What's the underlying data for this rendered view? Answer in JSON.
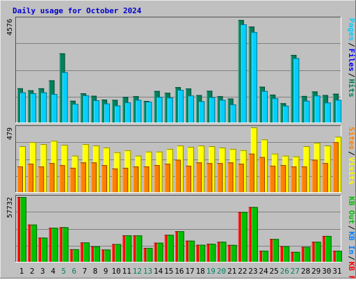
{
  "chart_data": {
    "type": "bar",
    "title": "Daily usage for October 2024",
    "categories": [
      "1",
      "2",
      "3",
      "4",
      "5",
      "6",
      "7",
      "8",
      "9",
      "10",
      "11",
      "12",
      "13",
      "14",
      "15",
      "16",
      "17",
      "18",
      "19",
      "20",
      "21",
      "22",
      "23",
      "24",
      "25",
      "26",
      "27",
      "28",
      "29",
      "30",
      "31"
    ],
    "weekend_days": [
      "5",
      "6",
      "12",
      "13",
      "19",
      "20",
      "26",
      "27"
    ],
    "panels": [
      {
        "max_label": "4576",
        "max": 4576,
        "series": [
          {
            "name": "Hits",
            "color": "#00805c",
            "values": [
              1510,
              1420,
              1510,
              1860,
              3050,
              960,
              1290,
              1180,
              1010,
              1000,
              1130,
              1160,
              950,
              1390,
              1310,
              1560,
              1500,
              1210,
              1400,
              1160,
              1060,
              4520,
              4230,
              1580,
              1230,
              850,
              2980,
              1170,
              1370,
              1210,
              1270
            ]
          },
          {
            "name": "Files",
            "color": "#0000ff",
            "values": [
              1330,
              1290,
              1330,
              1260,
              2220,
              820,
              1200,
              980,
              840,
              750,
              890,
              1000,
              920,
              1130,
              1100,
              1440,
              1190,
              940,
              1120,
              1000,
              800,
              4330,
              3990,
              1390,
              1070,
              740,
              2840,
              960,
              1190,
              880,
              1000
            ]
          },
          {
            "name": "Pages",
            "color": "#00d0ff",
            "values": [
              1330,
              1290,
              1330,
              1260,
              2220,
              820,
              1200,
              980,
              840,
              750,
              890,
              1000,
              920,
              1130,
              1100,
              1440,
              1190,
              940,
              1120,
              1000,
              800,
              4330,
              3990,
              1390,
              1070,
              740,
              2840,
              960,
              1190,
              880,
              1000
            ]
          }
        ]
      },
      {
        "max_label": "479",
        "max": 479,
        "series": [
          {
            "name": "Visits",
            "color": "#ffff00",
            "values": [
              340,
              370,
              355,
              380,
              350,
              270,
              355,
              345,
              330,
              295,
              310,
              270,
              300,
              300,
              320,
              345,
              335,
              345,
              340,
              330,
              320,
              310,
              479,
              390,
              285,
              270,
              265,
              340,
              365,
              345,
              410
            ]
          },
          {
            "name": "Sites",
            "color": "#ff8000",
            "values": [
              190,
              210,
              190,
              215,
              200,
              180,
              220,
              220,
              200,
              175,
              180,
              190,
              190,
              200,
              210,
              240,
              195,
              220,
              215,
              215,
              220,
              210,
              285,
              260,
              195,
              200,
              190,
              190,
              240,
              215,
              370
            ]
          }
        ]
      },
      {
        "max_label": "57732",
        "max": 57732,
        "series": [
          {
            "name": "KB F",
            "color": "#ff0000",
            "values": [
              57732,
              33200,
              21500,
              30300,
              30800,
              11200,
              17200,
              13700,
              10900,
              15800,
              23600,
              23500,
              12400,
              17000,
              24000,
              27200,
              18800,
              15200,
              16000,
              17800,
              15000,
              44300,
              48800,
              9800,
              20300,
              13900,
              8800,
              13300,
              17800,
              23000,
              9800
            ]
          },
          {
            "name": "KB In",
            "color": "#0080ff",
            "values": [
              0,
              0,
              0,
              0,
              0,
              0,
              0,
              0,
              0,
              0,
              0,
              0,
              0,
              0,
              0,
              0,
              0,
              0,
              0,
              0,
              0,
              0,
              0,
              0,
              0,
              0,
              0,
              0,
              0,
              0,
              0
            ]
          },
          {
            "name": "KB Out",
            "color": "#00c000",
            "values": [
              57732,
              33200,
              21500,
              30300,
              30800,
              11200,
              17200,
              13700,
              10900,
              15800,
              23600,
              23500,
              12400,
              17000,
              24000,
              27200,
              18800,
              15200,
              16000,
              17800,
              15000,
              44300,
              48800,
              9800,
              20300,
              13900,
              8800,
              13300,
              17800,
              23000,
              9800
            ]
          }
        ]
      }
    ],
    "legend_placement": "right"
  }
}
